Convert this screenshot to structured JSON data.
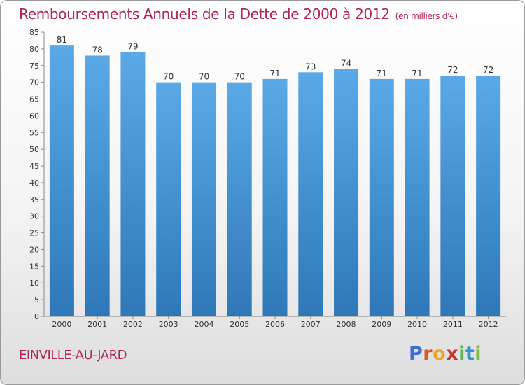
{
  "header": {
    "title": "Remboursements Annuels de la Dette de 2000 à 2012",
    "unit": "(en milliers d'€)"
  },
  "footer": {
    "city": "EINVILLE-AU-JARD",
    "brand": "Proxiti",
    "brand_colors": [
      "#3a6fd8",
      "#e0582a",
      "#f2a31f",
      "#c0392b",
      "#5cb85c",
      "#2f8fd0",
      "#7cbf3c"
    ]
  },
  "chart_data": {
    "type": "bar",
    "title": "Remboursements Annuels de la Dette de 2000 à 2012",
    "ylabel": "en milliers d'€",
    "xlabel": "",
    "categories": [
      "2000",
      "2001",
      "2002",
      "2003",
      "2004",
      "2005",
      "2006",
      "2007",
      "2008",
      "2009",
      "2010",
      "2011",
      "2012"
    ],
    "values": [
      81,
      78,
      79,
      70,
      70,
      70,
      71,
      73,
      74,
      71,
      71,
      72,
      72
    ],
    "ylim": [
      0,
      85
    ],
    "yticks": [
      0,
      5,
      10,
      15,
      20,
      25,
      30,
      35,
      40,
      45,
      50,
      55,
      60,
      65,
      70,
      75,
      80,
      85
    ],
    "grid": false,
    "bar_color_top": "#5aa9e6",
    "bar_color_bottom": "#2e78b8"
  }
}
